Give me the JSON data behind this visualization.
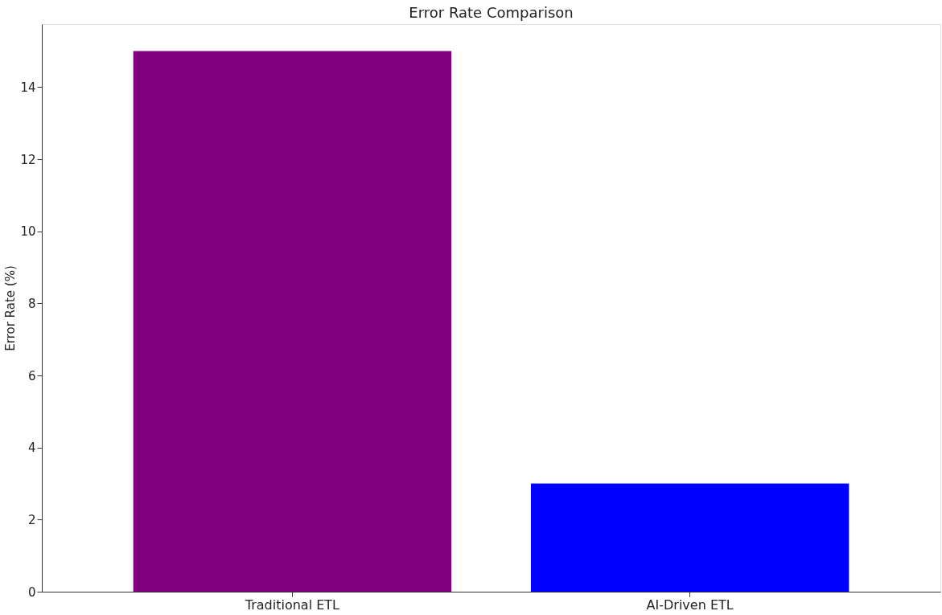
{
  "chart_data": {
    "type": "bar",
    "title": "Error Rate Comparison",
    "ylabel": "Error Rate (%)",
    "categories": [
      "Traditional ETL",
      "AI-Driven ETL"
    ],
    "values": [
      15,
      3
    ],
    "colors": [
      "#800080",
      "#0000ff"
    ],
    "ylim": [
      0,
      15.75
    ],
    "yticks": [
      0,
      2,
      4,
      6,
      8,
      10,
      12,
      14
    ],
    "grid": false
  }
}
